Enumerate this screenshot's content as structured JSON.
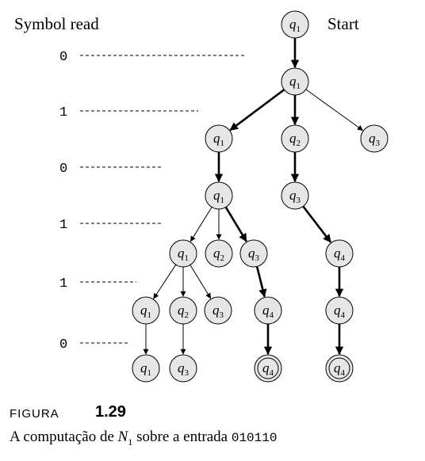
{
  "diagram": {
    "column_header": "Symbol read",
    "start_label": "Start",
    "symbols": [
      "0",
      "1",
      "0",
      "1",
      "1",
      "0"
    ],
    "nodes": [
      {
        "id": "n0",
        "state": "q",
        "sub": "1",
        "accept": false
      },
      {
        "id": "n1",
        "state": "q",
        "sub": "1",
        "accept": false
      },
      {
        "id": "n2",
        "state": "q",
        "sub": "1",
        "accept": false
      },
      {
        "id": "n3",
        "state": "q",
        "sub": "2",
        "accept": false
      },
      {
        "id": "n4",
        "state": "q",
        "sub": "3",
        "accept": false
      },
      {
        "id": "n5",
        "state": "q",
        "sub": "1",
        "accept": false
      },
      {
        "id": "n6",
        "state": "q",
        "sub": "3",
        "accept": false
      },
      {
        "id": "n7",
        "state": "q",
        "sub": "1",
        "accept": false
      },
      {
        "id": "n8",
        "state": "q",
        "sub": "2",
        "accept": false
      },
      {
        "id": "n9",
        "state": "q",
        "sub": "3",
        "accept": false
      },
      {
        "id": "n10",
        "state": "q",
        "sub": "4",
        "accept": false
      },
      {
        "id": "n11",
        "state": "q",
        "sub": "1",
        "accept": false
      },
      {
        "id": "n12",
        "state": "q",
        "sub": "2",
        "accept": false
      },
      {
        "id": "n13",
        "state": "q",
        "sub": "3",
        "accept": false
      },
      {
        "id": "n14",
        "state": "q",
        "sub": "4",
        "accept": false
      },
      {
        "id": "n15",
        "state": "q",
        "sub": "4",
        "accept": false
      },
      {
        "id": "n16",
        "state": "q",
        "sub": "1",
        "accept": false
      },
      {
        "id": "n17",
        "state": "q",
        "sub": "3",
        "accept": false
      },
      {
        "id": "n18",
        "state": "q",
        "sub": "4",
        "accept": true
      },
      {
        "id": "n19",
        "state": "q",
        "sub": "4",
        "accept": true
      }
    ],
    "edges": [
      {
        "from": "n0",
        "to": "n1",
        "bold": true
      },
      {
        "from": "n1",
        "to": "n2",
        "bold": true
      },
      {
        "from": "n1",
        "to": "n3",
        "bold": true
      },
      {
        "from": "n1",
        "to": "n4",
        "bold": false
      },
      {
        "from": "n2",
        "to": "n5",
        "bold": true
      },
      {
        "from": "n3",
        "to": "n6",
        "bold": true
      },
      {
        "from": "n5",
        "to": "n7",
        "bold": false
      },
      {
        "from": "n5",
        "to": "n8",
        "bold": false
      },
      {
        "from": "n5",
        "to": "n9",
        "bold": true
      },
      {
        "from": "n6",
        "to": "n10",
        "bold": true
      },
      {
        "from": "n7",
        "to": "n11",
        "bold": false
      },
      {
        "from": "n7",
        "to": "n12",
        "bold": false
      },
      {
        "from": "n7",
        "to": "n13",
        "bold": false
      },
      {
        "from": "n9",
        "to": "n14",
        "bold": true
      },
      {
        "from": "n10",
        "to": "n15",
        "bold": true
      },
      {
        "from": "n11",
        "to": "n16",
        "bold": false
      },
      {
        "from": "n12",
        "to": "n17",
        "bold": false
      },
      {
        "from": "n14",
        "to": "n18",
        "bold": true
      },
      {
        "from": "n15",
        "to": "n19",
        "bold": true
      }
    ]
  },
  "caption": {
    "label": "FIGURA",
    "number": "1.29",
    "text_before": "A computação de ",
    "machine_letter": "N",
    "machine_sub": "1",
    "text_middle": " sobre a entrada ",
    "input_string": "010110"
  },
  "colors": {
    "node_fill": "#e6e6e6",
    "stroke": "#000000"
  }
}
